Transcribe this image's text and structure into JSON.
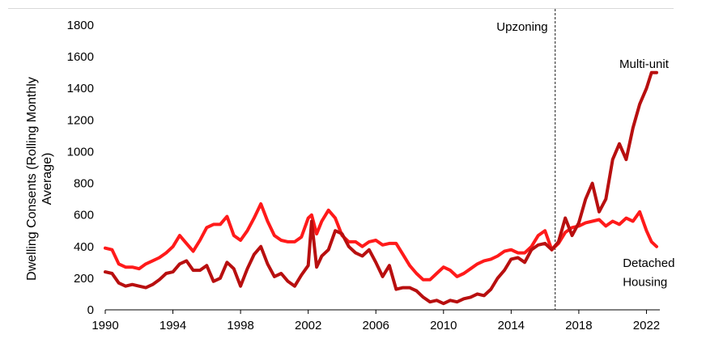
{
  "chart_data": {
    "type": "line",
    "title": "",
    "xlabel": "",
    "ylabel": "Dwelling Consents (Rolling Monthly Average)",
    "ylabel_lines": [
      "Dwelling Consents (Rolling Monthly",
      "Average)"
    ],
    "xlim": [
      1990,
      2022.6
    ],
    "ylim": [
      0,
      1800
    ],
    "x_ticks": [
      1990,
      1994,
      1998,
      2002,
      2006,
      2010,
      2014,
      2018,
      2022
    ],
    "y_ticks": [
      0,
      200,
      400,
      600,
      800,
      1000,
      1200,
      1400,
      1600,
      1800
    ],
    "grid": false,
    "annotations": [
      {
        "label": "Upzoning",
        "x": 2016.6,
        "style": "dashed vertical line"
      }
    ],
    "series": [
      {
        "name": "Detached Housing",
        "color": "#ff1a1a",
        "x": [
          1990.0,
          1990.4,
          1990.8,
          1991.2,
          1991.6,
          1992.0,
          1992.4,
          1992.8,
          1993.2,
          1993.6,
          1994.0,
          1994.4,
          1994.8,
          1995.2,
          1995.6,
          1996.0,
          1996.4,
          1996.8,
          1997.2,
          1997.6,
          1998.0,
          1998.4,
          1998.8,
          1999.2,
          1999.6,
          2000.0,
          2000.4,
          2000.8,
          2001.2,
          2001.6,
          2002.0,
          2002.2,
          2002.5,
          2002.8,
          2003.2,
          2003.6,
          2004.0,
          2004.4,
          2004.8,
          2005.2,
          2005.6,
          2006.0,
          2006.4,
          2006.8,
          2007.2,
          2007.6,
          2008.0,
          2008.4,
          2008.8,
          2009.2,
          2009.6,
          2010.0,
          2010.4,
          2010.8,
          2011.2,
          2011.6,
          2012.0,
          2012.4,
          2012.8,
          2013.2,
          2013.6,
          2014.0,
          2014.4,
          2014.8,
          2015.2,
          2015.6,
          2016.0,
          2016.4,
          2016.8,
          2017.2,
          2017.6,
          2018.0,
          2018.4,
          2018.8,
          2019.2,
          2019.6,
          2020.0,
          2020.4,
          2020.8,
          2021.2,
          2021.6,
          2022.0,
          2022.3,
          2022.6
        ],
        "y": [
          390,
          380,
          290,
          270,
          270,
          260,
          290,
          310,
          330,
          360,
          400,
          470,
          420,
          370,
          440,
          520,
          540,
          540,
          590,
          470,
          440,
          500,
          580,
          670,
          560,
          470,
          440,
          430,
          430,
          460,
          580,
          600,
          480,
          560,
          630,
          580,
          470,
          430,
          430,
          400,
          430,
          440,
          410,
          420,
          420,
          350,
          280,
          230,
          190,
          190,
          230,
          270,
          250,
          210,
          230,
          260,
          290,
          310,
          320,
          340,
          370,
          380,
          360,
          360,
          400,
          470,
          500,
          380,
          420,
          490,
          520,
          530,
          550,
          560,
          570,
          530,
          560,
          540,
          580,
          560,
          620,
          500,
          430,
          400
        ]
      },
      {
        "name": "Multi-unit",
        "color": "#b80f0f",
        "x": [
          1990.0,
          1990.4,
          1990.8,
          1991.2,
          1991.6,
          1992.0,
          1992.4,
          1992.8,
          1993.2,
          1993.6,
          1994.0,
          1994.4,
          1994.8,
          1995.2,
          1995.6,
          1996.0,
          1996.4,
          1996.8,
          1997.2,
          1997.6,
          1998.0,
          1998.4,
          1998.8,
          1999.2,
          1999.6,
          2000.0,
          2000.4,
          2000.8,
          2001.2,
          2001.6,
          2002.0,
          2002.2,
          2002.5,
          2002.8,
          2003.2,
          2003.6,
          2004.0,
          2004.4,
          2004.8,
          2005.2,
          2005.6,
          2006.0,
          2006.4,
          2006.8,
          2007.2,
          2007.6,
          2008.0,
          2008.4,
          2008.8,
          2009.2,
          2009.6,
          2010.0,
          2010.4,
          2010.8,
          2011.2,
          2011.6,
          2012.0,
          2012.4,
          2012.8,
          2013.2,
          2013.6,
          2014.0,
          2014.4,
          2014.8,
          2015.2,
          2015.6,
          2016.0,
          2016.4,
          2016.8,
          2017.2,
          2017.6,
          2018.0,
          2018.4,
          2018.8,
          2019.2,
          2019.6,
          2020.0,
          2020.4,
          2020.8,
          2021.2,
          2021.6,
          2022.0,
          2022.3,
          2022.6
        ],
        "y": [
          240,
          230,
          170,
          150,
          160,
          150,
          140,
          160,
          190,
          230,
          240,
          290,
          310,
          250,
          250,
          280,
          180,
          200,
          300,
          260,
          150,
          260,
          350,
          400,
          290,
          210,
          230,
          180,
          150,
          220,
          280,
          560,
          270,
          340,
          380,
          500,
          480,
          400,
          360,
          340,
          380,
          300,
          210,
          280,
          130,
          140,
          140,
          120,
          80,
          50,
          60,
          40,
          60,
          50,
          70,
          80,
          100,
          90,
          130,
          200,
          250,
          320,
          330,
          300,
          380,
          410,
          420,
          380,
          430,
          580,
          470,
          550,
          700,
          800,
          620,
          700,
          950,
          1050,
          950,
          1150,
          1300,
          1400,
          1500,
          1500
        ]
      }
    ],
    "labels": [
      {
        "text": "Multi-unit",
        "x": 2020.4,
        "y": 1530
      },
      {
        "text": "Detached",
        "x": 2020.6,
        "y": 270
      },
      {
        "text": "Housing",
        "x": 2020.6,
        "y": 150
      }
    ]
  }
}
